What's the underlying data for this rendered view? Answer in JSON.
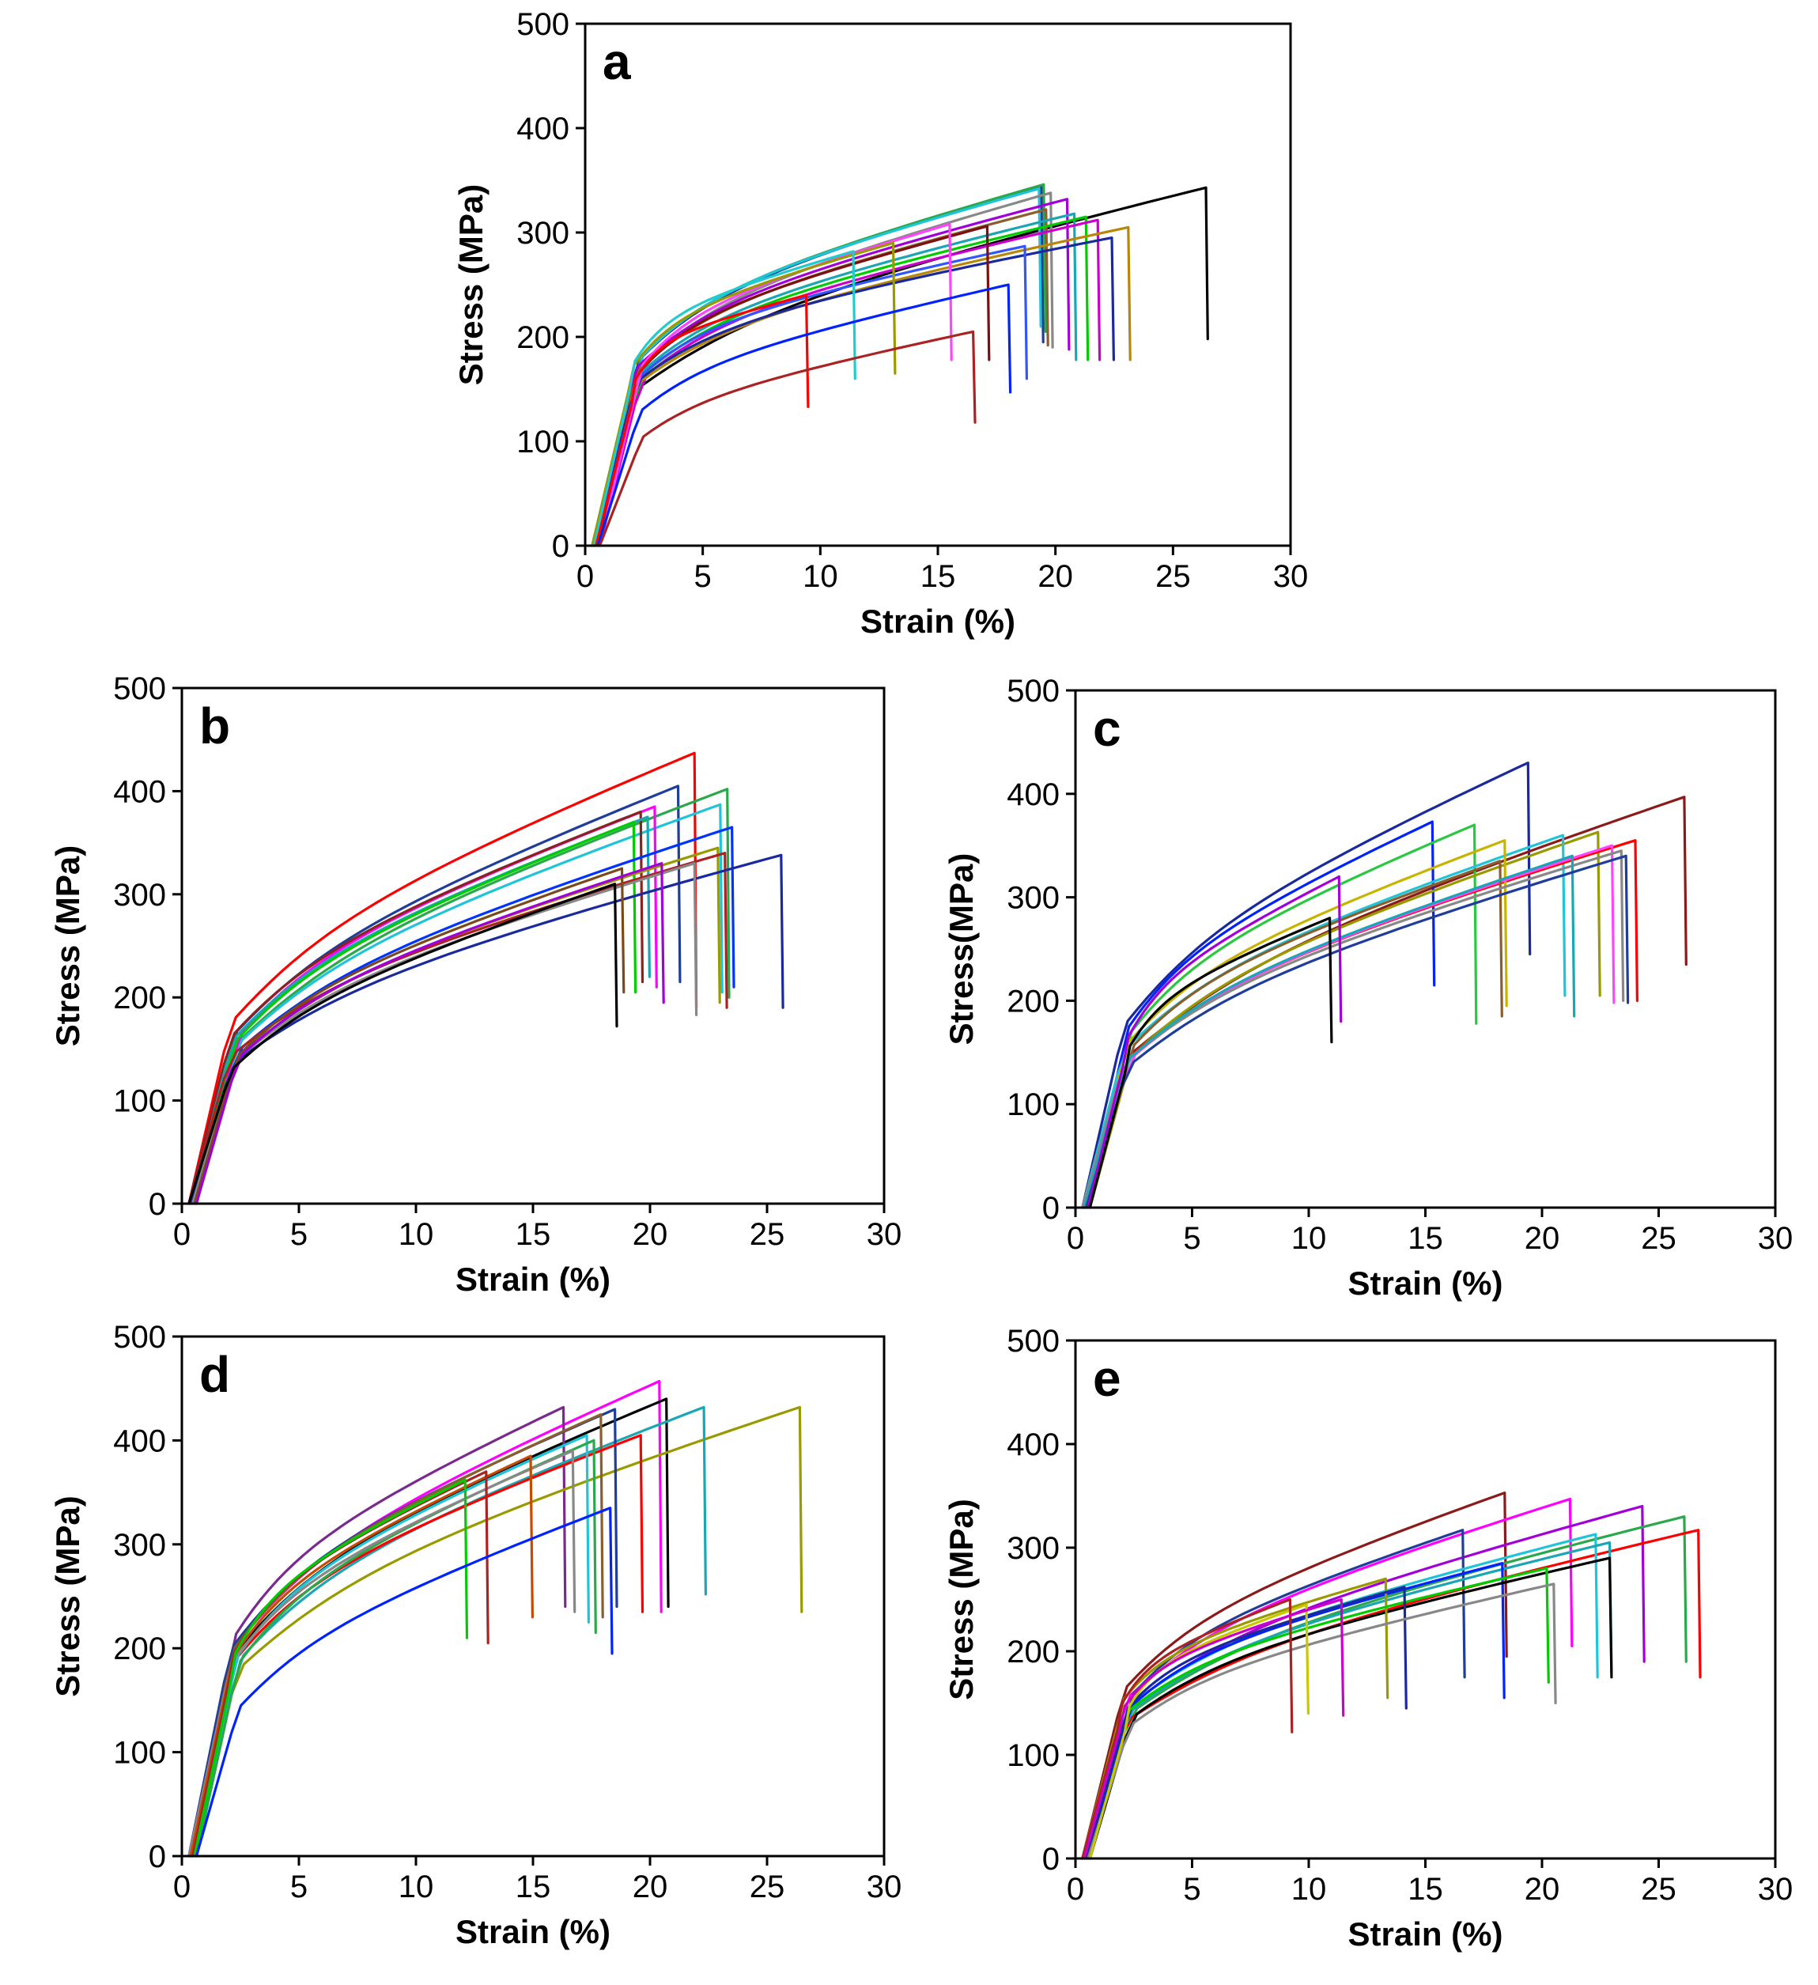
{
  "chart_data": [
    {
      "panel": "a",
      "type": "line",
      "title": "",
      "xlabel": "Strain (%)",
      "ylabel": "Stress (MPa)",
      "xlim": [
        0,
        30
      ],
      "ylim": [
        0,
        500
      ],
      "xticks": [
        "0",
        "5",
        "10",
        "15",
        "20",
        "25",
        "30"
      ],
      "yticks": [
        "0",
        "100",
        "200",
        "300",
        "400",
        "500"
      ],
      "series": [
        {
          "name": "s1",
          "color": "#000000",
          "x_fail": 26.4,
          "y_peak": 343,
          "y_end": 198,
          "yield": 175
        },
        {
          "name": "s2",
          "color": "#1f3d99",
          "x_fail": 19.4,
          "y_peak": 345,
          "y_end": 195,
          "yield": 205
        },
        {
          "name": "s3",
          "color": "#2aa84a",
          "x_fail": 19.5,
          "y_peak": 346,
          "y_end": 205,
          "yield": 208
        },
        {
          "name": "s4",
          "color": "#20c4d8",
          "x_fail": 19.3,
          "y_peak": 342,
          "y_end": 210,
          "yield": 210
        },
        {
          "name": "s5",
          "color": "#888888",
          "x_fail": 19.8,
          "y_peak": 338,
          "y_end": 190,
          "yield": 200
        },
        {
          "name": "s6",
          "color": "#a100d8",
          "x_fail": 20.5,
          "y_peak": 332,
          "y_end": 188,
          "yield": 198
        },
        {
          "name": "s7",
          "color": "#8b5e2e",
          "x_fail": 19.6,
          "y_peak": 322,
          "y_end": 192,
          "yield": 195
        },
        {
          "name": "s8",
          "color": "#1aa6b3",
          "x_fail": 20.8,
          "y_peak": 318,
          "y_end": 178,
          "yield": 192
        },
        {
          "name": "s9",
          "color": "#00cc00",
          "x_fail": 21.3,
          "y_peak": 315,
          "y_end": 178,
          "yield": 190
        },
        {
          "name": "s10",
          "color": "#cc00cc",
          "x_fail": 21.8,
          "y_peak": 312,
          "y_end": 178,
          "yield": 188
        },
        {
          "name": "s11",
          "color": "#b8860b",
          "x_fail": 23.1,
          "y_peak": 305,
          "y_end": 178,
          "yield": 180
        },
        {
          "name": "s12",
          "color": "#1a2a9c",
          "x_fail": 22.4,
          "y_peak": 295,
          "y_end": 178,
          "yield": 185
        },
        {
          "name": "s13",
          "color": "#3355ff",
          "x_fail": 18.7,
          "y_peak": 287,
          "y_end": 160,
          "yield": 188
        },
        {
          "name": "s14",
          "color": "#7a1010",
          "x_fail": 17.1,
          "y_peak": 306,
          "y_end": 178,
          "yield": 195
        },
        {
          "name": "s15",
          "color": "#ff44ff",
          "x_fail": 15.5,
          "y_peak": 308,
          "y_end": 178,
          "yield": 200
        },
        {
          "name": "s16",
          "color": "#999900",
          "x_fail": 13.1,
          "y_peak": 290,
          "y_end": 165,
          "yield": 200
        },
        {
          "name": "s17",
          "color": "#22cccc",
          "x_fail": 11.4,
          "y_peak": 282,
          "y_end": 160,
          "yield": 205
        },
        {
          "name": "s18",
          "color": "#ff0000",
          "x_fail": 9.4,
          "y_peak": 240,
          "y_end": 133,
          "yield": 185
        },
        {
          "name": "s19",
          "color": "#0022ff",
          "x_fail": 18.0,
          "y_peak": 250,
          "y_end": 147,
          "yield": 150
        },
        {
          "name": "s20",
          "color": "#aa2222",
          "x_fail": 16.5,
          "y_peak": 205,
          "y_end": 118,
          "yield": 120
        }
      ]
    },
    {
      "panel": "b",
      "type": "line",
      "title": "",
      "xlabel": "Strain (%)",
      "ylabel": "Stress (MPa)",
      "xlim": [
        0,
        30
      ],
      "ylim": [
        0,
        500
      ],
      "xticks": [
        "0",
        "5",
        "10",
        "15",
        "20",
        "25",
        "30"
      ],
      "yticks": [
        "0",
        "100",
        "200",
        "300",
        "400",
        "500"
      ],
      "series": [
        {
          "name": "s1",
          "color": "#ff0000",
          "x_fail": 21.9,
          "y_peak": 437,
          "y_end": 190,
          "yield": 205
        },
        {
          "name": "s2",
          "color": "#1f3d99",
          "x_fail": 21.2,
          "y_peak": 405,
          "y_end": 215,
          "yield": 190
        },
        {
          "name": "s3",
          "color": "#2aa84a",
          "x_fail": 23.3,
          "y_peak": 402,
          "y_end": 200,
          "yield": 180
        },
        {
          "name": "s4",
          "color": "#20c4d8",
          "x_fail": 23.0,
          "y_peak": 387,
          "y_end": 205,
          "yield": 180
        },
        {
          "name": "s5",
          "color": "#ff00ff",
          "x_fail": 20.2,
          "y_peak": 385,
          "y_end": 210,
          "yield": 190
        },
        {
          "name": "s6",
          "color": "#8b2222",
          "x_fail": 19.6,
          "y_peak": 380,
          "y_end": 215,
          "yield": 188
        },
        {
          "name": "s7",
          "color": "#1aa6b3",
          "x_fail": 19.9,
          "y_peak": 375,
          "y_end": 220,
          "yield": 185
        },
        {
          "name": "s8",
          "color": "#00cc00",
          "x_fail": 19.3,
          "y_peak": 370,
          "y_end": 205,
          "yield": 182
        },
        {
          "name": "s9",
          "color": "#0033ff",
          "x_fail": 23.5,
          "y_peak": 365,
          "y_end": 210,
          "yield": 172
        },
        {
          "name": "s10",
          "color": "#999900",
          "x_fail": 22.9,
          "y_peak": 345,
          "y_end": 195,
          "yield": 168
        },
        {
          "name": "s11",
          "color": "#aa2222",
          "x_fail": 23.2,
          "y_peak": 340,
          "y_end": 190,
          "yield": 168
        },
        {
          "name": "s12",
          "color": "#1a2a9c",
          "x_fail": 25.6,
          "y_peak": 338,
          "y_end": 190,
          "yield": 160
        },
        {
          "name": "s13",
          "color": "#888888",
          "x_fail": 21.9,
          "y_peak": 330,
          "y_end": 183,
          "yield": 162
        },
        {
          "name": "s14",
          "color": "#7a4a1a",
          "x_fail": 18.8,
          "y_peak": 325,
          "y_end": 205,
          "yield": 165
        },
        {
          "name": "s15",
          "color": "#a100d8",
          "x_fail": 20.5,
          "y_peak": 330,
          "y_end": 195,
          "yield": 165
        },
        {
          "name": "s16",
          "color": "#000000",
          "x_fail": 18.5,
          "y_peak": 310,
          "y_end": 172,
          "yield": 150
        }
      ]
    },
    {
      "panel": "c",
      "type": "line",
      "title": "",
      "xlabel": "Strain (%)",
      "ylabel": "Stress(MPa)",
      "xlim": [
        0,
        30
      ],
      "ylim": [
        0,
        500
      ],
      "xticks": [
        "0",
        "5",
        "10",
        "15",
        "20",
        "25",
        "30"
      ],
      "yticks": [
        "0",
        "100",
        "200",
        "300",
        "400",
        "500"
      ],
      "series": [
        {
          "name": "s1",
          "color": "#1a2a9c",
          "x_fail": 19.4,
          "y_peak": 430,
          "y_end": 245,
          "yield": 205
        },
        {
          "name": "s2",
          "color": "#8b1a1a",
          "x_fail": 26.1,
          "y_peak": 397,
          "y_end": 235,
          "yield": 170
        },
        {
          "name": "s3",
          "color": "#0022ff",
          "x_fail": 15.3,
          "y_peak": 373,
          "y_end": 215,
          "yield": 200
        },
        {
          "name": "s4",
          "color": "#2ac840",
          "x_fail": 17.1,
          "y_peak": 370,
          "y_end": 178,
          "yield": 195
        },
        {
          "name": "s5",
          "color": "#999900",
          "x_fail": 22.4,
          "y_peak": 363,
          "y_end": 205,
          "yield": 172
        },
        {
          "name": "s6",
          "color": "#20c4d8",
          "x_fail": 20.9,
          "y_peak": 360,
          "y_end": 205,
          "yield": 178
        },
        {
          "name": "s7",
          "color": "#ff0000",
          "x_fail": 24.0,
          "y_peak": 355,
          "y_end": 200,
          "yield": 168
        },
        {
          "name": "s8",
          "color": "#c8b400",
          "x_fail": 18.4,
          "y_peak": 355,
          "y_end": 195,
          "yield": 185
        },
        {
          "name": "s9",
          "color": "#ff44ff",
          "x_fail": 23.0,
          "y_peak": 350,
          "y_end": 198,
          "yield": 168
        },
        {
          "name": "s10",
          "color": "#8b5e2e",
          "x_fail": 18.2,
          "y_peak": 335,
          "y_end": 185,
          "yield": 180
        },
        {
          "name": "s11",
          "color": "#888888",
          "x_fail": 23.4,
          "y_peak": 345,
          "y_end": 200,
          "yield": 165
        },
        {
          "name": "s12",
          "color": "#1aa6b3",
          "x_fail": 21.3,
          "y_peak": 340,
          "y_end": 185,
          "yield": 165
        },
        {
          "name": "s13",
          "color": "#1f3d99",
          "x_fail": 23.6,
          "y_peak": 340,
          "y_end": 198,
          "yield": 160
        },
        {
          "name": "s14",
          "color": "#a100d8",
          "x_fail": 11.3,
          "y_peak": 320,
          "y_end": 180,
          "yield": 190
        },
        {
          "name": "s15",
          "color": "#000000",
          "x_fail": 10.9,
          "y_peak": 280,
          "y_end": 160,
          "yield": 180
        }
      ]
    },
    {
      "panel": "d",
      "type": "line",
      "title": "",
      "xlabel": "Strain (%)",
      "ylabel": "Stress (MPa)",
      "xlim": [
        0,
        30
      ],
      "ylim": [
        0,
        500
      ],
      "xticks": [
        "0",
        "5",
        "10",
        "15",
        "20",
        "25",
        "30"
      ],
      "yticks": [
        "0",
        "100",
        "200",
        "300",
        "400",
        "500"
      ],
      "series": [
        {
          "name": "s1",
          "color": "#ff00ff",
          "x_fail": 20.4,
          "y_peak": 457,
          "y_end": 235,
          "yield": 230
        },
        {
          "name": "s2",
          "color": "#000000",
          "x_fail": 20.7,
          "y_peak": 440,
          "y_end": 240,
          "yield": 225
        },
        {
          "name": "s3",
          "color": "#7a2a8c",
          "x_fail": 16.3,
          "y_peak": 432,
          "y_end": 240,
          "yield": 245
        },
        {
          "name": "s4",
          "color": "#999900",
          "x_fail": 26.4,
          "y_peak": 432,
          "y_end": 235,
          "yield": 210
        },
        {
          "name": "s5",
          "color": "#1aa6b3",
          "x_fail": 22.3,
          "y_peak": 432,
          "y_end": 252,
          "yield": 220
        },
        {
          "name": "s6",
          "color": "#1f3d99",
          "x_fail": 18.5,
          "y_peak": 430,
          "y_end": 240,
          "yield": 232
        },
        {
          "name": "s7",
          "color": "#8b5e2e",
          "x_fail": 17.9,
          "y_peak": 425,
          "y_end": 230,
          "yield": 230
        },
        {
          "name": "s8",
          "color": "#ff0000",
          "x_fail": 19.6,
          "y_peak": 405,
          "y_end": 235,
          "yield": 220
        },
        {
          "name": "s9",
          "color": "#20c4d8",
          "x_fail": 17.3,
          "y_peak": 405,
          "y_end": 225,
          "yield": 222
        },
        {
          "name": "s10",
          "color": "#2aa84a",
          "x_fail": 17.6,
          "y_peak": 400,
          "y_end": 215,
          "yield": 215
        },
        {
          "name": "s11",
          "color": "#888888",
          "x_fail": 16.7,
          "y_peak": 390,
          "y_end": 235,
          "yield": 215
        },
        {
          "name": "s12",
          "color": "#c84a00",
          "x_fail": 14.9,
          "y_peak": 385,
          "y_end": 230,
          "yield": 220
        },
        {
          "name": "s13",
          "color": "#aa2222",
          "x_fail": 13.0,
          "y_peak": 370,
          "y_end": 205,
          "yield": 225
        },
        {
          "name": "s14",
          "color": "#00cc00",
          "x_fail": 12.1,
          "y_peak": 362,
          "y_end": 210,
          "yield": 225
        },
        {
          "name": "s15",
          "color": "#0022ff",
          "x_fail": 18.3,
          "y_peak": 335,
          "y_end": 195,
          "yield": 165
        }
      ]
    },
    {
      "panel": "e",
      "type": "line",
      "title": "",
      "xlabel": "Strain (%)",
      "ylabel": "Stress (MPa)",
      "xlim": [
        0,
        30
      ],
      "ylim": [
        0,
        500
      ],
      "xticks": [
        "0",
        "5",
        "10",
        "15",
        "20",
        "25",
        "30"
      ],
      "yticks": [
        "0",
        "100",
        "200",
        "300",
        "400",
        "500"
      ],
      "series": [
        {
          "name": "s1",
          "color": "#8b1a1a",
          "x_fail": 18.4,
          "y_peak": 353,
          "y_end": 195,
          "yield": 190
        },
        {
          "name": "s2",
          "color": "#ff00ff",
          "x_fail": 21.2,
          "y_peak": 347,
          "y_end": 205,
          "yield": 180
        },
        {
          "name": "s3",
          "color": "#a100d8",
          "x_fail": 24.3,
          "y_peak": 340,
          "y_end": 190,
          "yield": 172
        },
        {
          "name": "s4",
          "color": "#2aa84a",
          "x_fail": 26.1,
          "y_peak": 330,
          "y_end": 190,
          "yield": 165
        },
        {
          "name": "s5",
          "color": "#1f3d99",
          "x_fail": 16.6,
          "y_peak": 317,
          "y_end": 175,
          "yield": 182
        },
        {
          "name": "s6",
          "color": "#ff0000",
          "x_fail": 26.7,
          "y_peak": 317,
          "y_end": 175,
          "yield": 155
        },
        {
          "name": "s7",
          "color": "#20c4d8",
          "x_fail": 22.3,
          "y_peak": 313,
          "y_end": 175,
          "yield": 170
        },
        {
          "name": "s8",
          "color": "#1aa6b3",
          "x_fail": 22.9,
          "y_peak": 305,
          "y_end": 180,
          "yield": 165
        },
        {
          "name": "s9",
          "color": "#0022ff",
          "x_fail": 18.3,
          "y_peak": 285,
          "y_end": 155,
          "yield": 170
        },
        {
          "name": "s10",
          "color": "#000000",
          "x_fail": 22.9,
          "y_peak": 290,
          "y_end": 175,
          "yield": 160
        },
        {
          "name": "s11",
          "color": "#999900",
          "x_fail": 13.3,
          "y_peak": 270,
          "y_end": 155,
          "yield": 178
        },
        {
          "name": "s12",
          "color": "#00cc00",
          "x_fail": 20.2,
          "y_peak": 280,
          "y_end": 170,
          "yield": 165
        },
        {
          "name": "s13",
          "color": "#1a2a9c",
          "x_fail": 14.1,
          "y_peak": 262,
          "y_end": 145,
          "yield": 168
        },
        {
          "name": "s14",
          "color": "#888888",
          "x_fail": 20.5,
          "y_peak": 265,
          "y_end": 150,
          "yield": 150
        },
        {
          "name": "s15",
          "color": "#c8c800",
          "x_fail": 9.9,
          "y_peak": 245,
          "y_end": 140,
          "yield": 170
        },
        {
          "name": "s16",
          "color": "#aa2222",
          "x_fail": 9.2,
          "y_peak": 250,
          "y_end": 122,
          "yield": 172
        },
        {
          "name": "s17",
          "color": "#cc00cc",
          "x_fail": 11.4,
          "y_peak": 250,
          "y_end": 138,
          "yield": 170
        }
      ]
    }
  ]
}
